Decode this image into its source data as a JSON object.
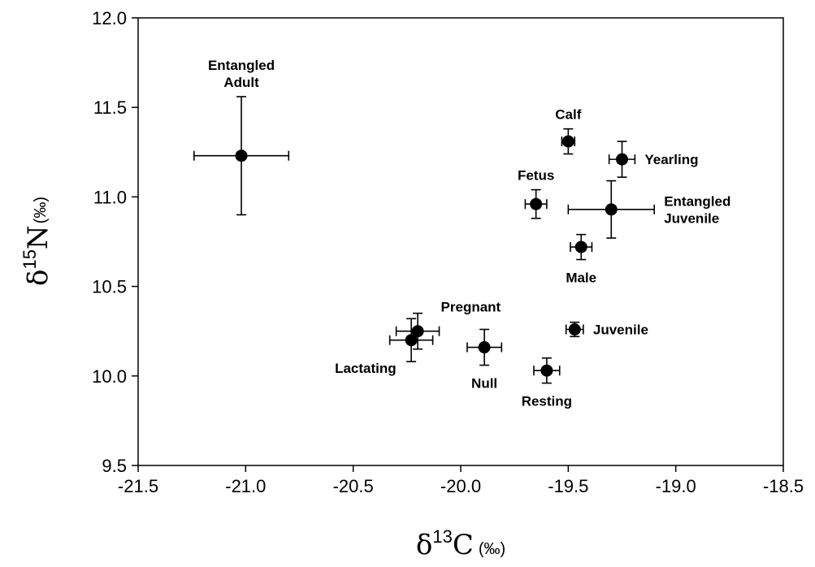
{
  "chart_data": {
    "type": "scatter",
    "title": "",
    "xlabel": {
      "symbol": "δ",
      "superscript": "13",
      "element": "C",
      "unit": "(‰)"
    },
    "ylabel": {
      "symbol": "δ",
      "superscript": "15",
      "element": "N",
      "unit": "(‰)"
    },
    "xlim": [
      -21.5,
      -18.5
    ],
    "ylim": [
      9.5,
      12.0
    ],
    "x_ticks": [
      -21.5,
      -21.0,
      -20.5,
      -20.0,
      -19.5,
      -19.0,
      -18.5
    ],
    "y_ticks": [
      9.5,
      10.0,
      10.5,
      11.0,
      11.5,
      12.0
    ],
    "x_tick_labels": [
      "-21.5",
      "-21.0",
      "-20.5",
      "-20.0",
      "-19.5",
      "-19.0",
      "-18.5"
    ],
    "y_tick_labels": [
      "9.5",
      "10.0",
      "10.5",
      "11.0",
      "11.5",
      "12.0"
    ],
    "grid": false,
    "series": [
      {
        "points": [
          {
            "label": [
              "Entangled",
              "Adult"
            ],
            "x": -21.02,
            "y": 11.23,
            "xerr": 0.22,
            "yerr": 0.33,
            "label_pos": "above"
          },
          {
            "label": [
              "Calf"
            ],
            "x": -19.5,
            "y": 11.31,
            "xerr": 0.03,
            "yerr": 0.07,
            "label_pos": "above"
          },
          {
            "label": [
              "Yearling"
            ],
            "x": -19.25,
            "y": 11.21,
            "xerr": 0.06,
            "yerr": 0.1,
            "label_pos": "right"
          },
          {
            "label": [
              "Fetus"
            ],
            "x": -19.65,
            "y": 10.96,
            "xerr": 0.05,
            "yerr": 0.08,
            "label_pos": "above"
          },
          {
            "label": [
              "Entangled",
              "Juvenile"
            ],
            "x": -19.3,
            "y": 10.93,
            "xerr": 0.2,
            "yerr": 0.16,
            "label_pos": "right"
          },
          {
            "label": [
              "Male"
            ],
            "x": -19.44,
            "y": 10.72,
            "xerr": 0.05,
            "yerr": 0.07,
            "label_pos": "below"
          },
          {
            "label": [
              "Pregnant"
            ],
            "x": -20.2,
            "y": 10.25,
            "xerr": 0.1,
            "yerr": 0.1,
            "label_pos": "upper-right"
          },
          {
            "label": [
              "Lactating"
            ],
            "x": -20.23,
            "y": 10.2,
            "xerr": 0.1,
            "yerr": 0.12,
            "label_pos": "lower-left"
          },
          {
            "label": [
              "Null"
            ],
            "x": -19.89,
            "y": 10.16,
            "xerr": 0.08,
            "yerr": 0.1,
            "label_pos": "below"
          },
          {
            "label": [
              "Juvenile"
            ],
            "x": -19.47,
            "y": 10.26,
            "xerr": 0.04,
            "yerr": 0.04,
            "label_pos": "right"
          },
          {
            "label": [
              "Resting"
            ],
            "x": -19.6,
            "y": 10.03,
            "xerr": 0.06,
            "yerr": 0.07,
            "label_pos": "below"
          }
        ]
      }
    ]
  }
}
